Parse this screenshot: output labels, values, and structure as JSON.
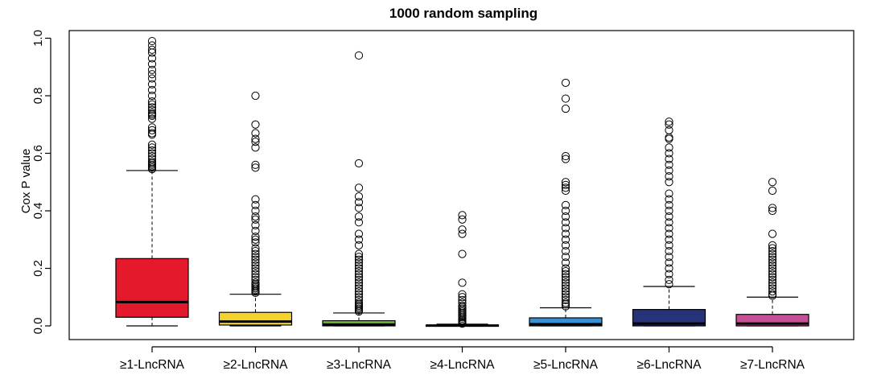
{
  "chart_data": {
    "type": "boxplot",
    "title": "1000 random sampling",
    "xlabel": "",
    "ylabel": "Cox P value",
    "ylim": [
      0,
      1.0
    ],
    "yticks": [
      "0.0",
      "0.2",
      "0.4",
      "0.6",
      "0.8",
      "1.0"
    ],
    "grid": false,
    "legend": "none",
    "categories": [
      "≥1-LncRNA",
      "≥2-LncRNA",
      "≥3-LncRNA",
      "≥4-LncRNA",
      "≥5-LncRNA",
      "≥6-LncRNA",
      "≥7-LncRNA"
    ],
    "boxes": [
      {
        "color": "#e41a2c",
        "whisker_low": 0.0,
        "q1": 0.03,
        "median": 0.083,
        "q3": 0.234,
        "whisker_high": 0.54,
        "outliers": [
          0.545,
          0.55,
          0.555,
          0.56,
          0.565,
          0.57,
          0.58,
          0.59,
          0.6,
          0.61,
          0.62,
          0.63,
          0.665,
          0.67,
          0.68,
          0.69,
          0.72,
          0.73,
          0.735,
          0.74,
          0.75,
          0.76,
          0.77,
          0.78,
          0.8,
          0.82,
          0.84,
          0.86,
          0.875,
          0.89,
          0.91,
          0.93,
          0.95,
          0.96,
          0.975,
          0.99
        ]
      },
      {
        "color": "#f5d32a",
        "whisker_low": 0.0,
        "q1": 0.003,
        "median": 0.015,
        "q3": 0.047,
        "whisker_high": 0.11,
        "outliers": [
          0.115,
          0.12,
          0.125,
          0.13,
          0.135,
          0.14,
          0.145,
          0.15,
          0.16,
          0.17,
          0.18,
          0.19,
          0.2,
          0.21,
          0.22,
          0.23,
          0.24,
          0.25,
          0.26,
          0.27,
          0.29,
          0.3,
          0.31,
          0.33,
          0.35,
          0.37,
          0.38,
          0.4,
          0.42,
          0.44,
          0.55,
          0.56,
          0.62,
          0.64,
          0.65,
          0.67,
          0.7,
          0.8
        ]
      },
      {
        "color": "#6fbe44",
        "whisker_low": 0.0,
        "q1": 0.0,
        "median": 0.005,
        "q3": 0.018,
        "whisker_high": 0.045,
        "outliers": [
          0.05,
          0.055,
          0.06,
          0.065,
          0.07,
          0.075,
          0.08,
          0.09,
          0.1,
          0.11,
          0.12,
          0.13,
          0.14,
          0.15,
          0.16,
          0.17,
          0.18,
          0.19,
          0.2,
          0.21,
          0.22,
          0.23,
          0.24,
          0.25,
          0.28,
          0.3,
          0.32,
          0.36,
          0.38,
          0.41,
          0.43,
          0.45,
          0.48,
          0.565,
          0.94
        ]
      },
      {
        "color": "#333333",
        "whisker_low": 0.0,
        "q1": 0.0,
        "median": 0.001,
        "q3": 0.003,
        "whisker_high": 0.006,
        "outliers": [
          0.008,
          0.012,
          0.016,
          0.02,
          0.025,
          0.03,
          0.035,
          0.04,
          0.045,
          0.05,
          0.055,
          0.06,
          0.065,
          0.07,
          0.08,
          0.09,
          0.1,
          0.11,
          0.15,
          0.25,
          0.32,
          0.335,
          0.37,
          0.385
        ]
      },
      {
        "color": "#3a8fd0",
        "whisker_low": 0.0,
        "q1": 0.0,
        "median": 0.006,
        "q3": 0.028,
        "whisker_high": 0.063,
        "outliers": [
          0.068,
          0.075,
          0.08,
          0.09,
          0.1,
          0.11,
          0.12,
          0.13,
          0.14,
          0.15,
          0.16,
          0.17,
          0.18,
          0.19,
          0.2,
          0.22,
          0.24,
          0.26,
          0.28,
          0.3,
          0.32,
          0.34,
          0.36,
          0.38,
          0.4,
          0.42,
          0.47,
          0.48,
          0.49,
          0.5,
          0.58,
          0.59,
          0.755,
          0.79,
          0.845
        ]
      },
      {
        "color": "#26337a",
        "whisker_low": 0.0,
        "q1": 0.0,
        "median": 0.008,
        "q3": 0.057,
        "whisker_high": 0.137,
        "outliers": [
          0.145,
          0.16,
          0.18,
          0.2,
          0.22,
          0.24,
          0.26,
          0.28,
          0.3,
          0.32,
          0.34,
          0.36,
          0.38,
          0.4,
          0.42,
          0.44,
          0.46,
          0.5,
          0.52,
          0.54,
          0.56,
          0.58,
          0.6,
          0.62,
          0.65,
          0.655,
          0.68,
          0.7,
          0.71
        ]
      },
      {
        "color": "#c64f96",
        "whisker_low": 0.0,
        "q1": 0.0,
        "median": 0.008,
        "q3": 0.04,
        "whisker_high": 0.1,
        "outliers": [
          0.105,
          0.11,
          0.12,
          0.13,
          0.14,
          0.15,
          0.16,
          0.17,
          0.18,
          0.19,
          0.2,
          0.21,
          0.22,
          0.23,
          0.24,
          0.25,
          0.26,
          0.27,
          0.28,
          0.32,
          0.4,
          0.41,
          0.47,
          0.5
        ]
      }
    ]
  }
}
